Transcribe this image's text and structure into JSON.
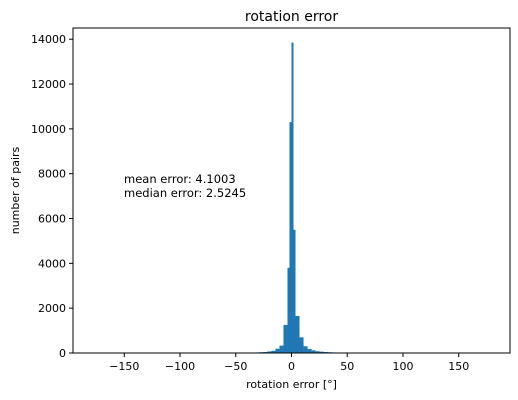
{
  "chart_data": {
    "type": "bar",
    "title": "rotation error",
    "xlabel": "rotation error [°]",
    "ylabel": "number of pairs",
    "xlim": [
      -196,
      196
    ],
    "ylim": [
      0,
      14500
    ],
    "xticks": [
      -150,
      -100,
      -50,
      0,
      50,
      100,
      150
    ],
    "xtick_labels": [
      "−150",
      "−100",
      "−50",
      "0",
      "50",
      "100",
      "150"
    ],
    "yticks": [
      0,
      2000,
      4000,
      6000,
      8000,
      10000,
      12000,
      14000
    ],
    "ytick_labels": [
      "0",
      "2000",
      "4000",
      "6000",
      "8000",
      "10000",
      "12000",
      "14000"
    ],
    "bar_color": "#1f77b4",
    "grid": false,
    "bin_width": 3.6,
    "bins": [
      {
        "x0": -39.6,
        "value": 15
      },
      {
        "x0": -36.0,
        "value": 20
      },
      {
        "x0": -32.4,
        "value": 25
      },
      {
        "x0": -28.8,
        "value": 35
      },
      {
        "x0": -25.2,
        "value": 45
      },
      {
        "x0": -21.6,
        "value": 70
      },
      {
        "x0": -18.0,
        "value": 100
      },
      {
        "x0": -14.4,
        "value": 190
      },
      {
        "x0": -10.8,
        "value": 330
      },
      {
        "x0": -7.2,
        "value": 1250
      },
      {
        "x0": -3.6,
        "value": 3800
      },
      {
        "x0": -1.8,
        "value": 10300
      },
      {
        "x0": 0.0,
        "value": 13850
      },
      {
        "x0": 1.8,
        "value": 5500
      },
      {
        "x0": 3.6,
        "value": 1650
      },
      {
        "x0": 7.2,
        "value": 700
      },
      {
        "x0": 10.8,
        "value": 300
      },
      {
        "x0": 14.4,
        "value": 180
      },
      {
        "x0": 18.0,
        "value": 120
      },
      {
        "x0": 21.6,
        "value": 80
      },
      {
        "x0": 25.2,
        "value": 60
      },
      {
        "x0": 28.8,
        "value": 45
      },
      {
        "x0": 32.4,
        "value": 35
      },
      {
        "x0": 36.0,
        "value": 25
      },
      {
        "x0": 39.6,
        "value": 15
      }
    ],
    "annotations": [
      "mean error: 4.1003",
      "median error: 2.5245"
    ]
  }
}
